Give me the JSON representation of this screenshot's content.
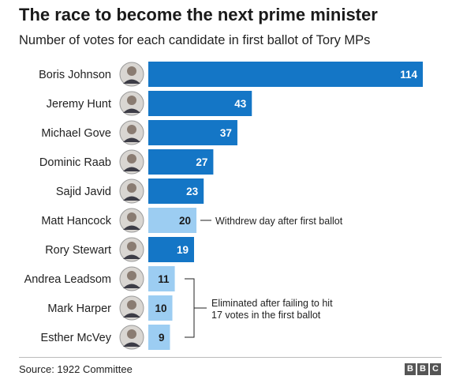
{
  "header": {
    "title": "The race to become the next prime minister",
    "subtitle": "Number of votes for each candidate in first ballot of Tory MPs"
  },
  "footer": {
    "source": "Source: 1922 Committee",
    "logo_letters": [
      "B",
      "B",
      "C"
    ]
  },
  "colors": {
    "dark_bar": "#1476c6",
    "light_bar": "#9ccdf2",
    "dark_label": "#ffffff",
    "light_label": "#1a1a1a",
    "annotation": "#222222"
  },
  "chart_data": {
    "type": "bar",
    "orientation": "horizontal",
    "categories": [
      "Boris Johnson",
      "Jeremy Hunt",
      "Michael Gove",
      "Dominic Raab",
      "Sajid Javid",
      "Matt Hancock",
      "Rory Stewart",
      "Andrea Leadsom",
      "Mark Harper",
      "Esther McVey"
    ],
    "values": [
      114,
      43,
      37,
      27,
      23,
      20,
      19,
      11,
      10,
      9
    ],
    "bar_style": [
      "dark",
      "dark",
      "dark",
      "dark",
      "dark",
      "light",
      "dark",
      "light",
      "light",
      "light"
    ],
    "data_labels": [
      "114",
      "43",
      "37",
      "27",
      "23",
      "20",
      "19",
      "11",
      "10",
      "9"
    ],
    "xlim": [
      0,
      114
    ],
    "grid": false,
    "legend": "none",
    "annotations": [
      {
        "text": "Withdrew day after first ballot",
        "applies_to": [
          "Matt Hancock"
        ]
      },
      {
        "text": "Eliminated after failing to hit\n17 votes in the first ballot",
        "applies_to": [
          "Andrea Leadsom",
          "Mark Harper",
          "Esther McVey"
        ]
      }
    ]
  }
}
